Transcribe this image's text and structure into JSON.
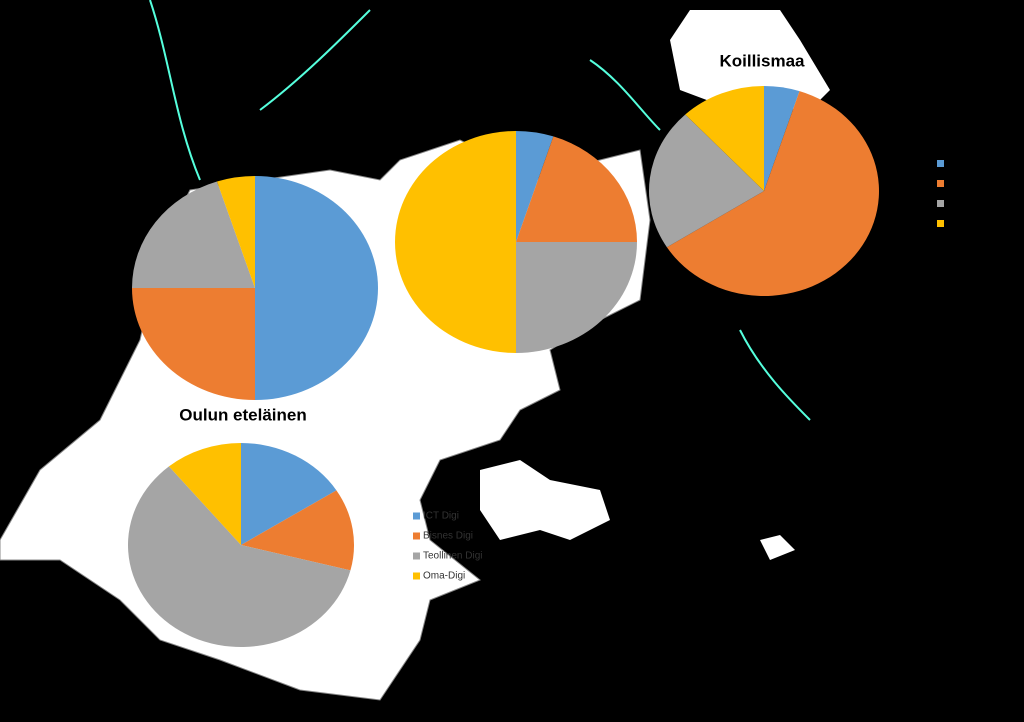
{
  "legend": {
    "labels": [
      "ICT Digi",
      "Bisnes Digi",
      "Teollinen Digi",
      "Oma-Digi"
    ],
    "colors": [
      "#5b9bd5",
      "#ed7d31",
      "#a5a5a5",
      "#ffc000"
    ]
  },
  "chart_data": [
    {
      "type": "pie",
      "values": [
        50,
        25,
        20,
        5
      ]
    },
    {
      "type": "pie",
      "values": [
        5,
        20,
        25,
        50
      ]
    },
    {
      "type": "pie",
      "title": "Koillismaa",
      "values": [
        5,
        61,
        22,
        12
      ]
    },
    {
      "type": "pie",
      "title": "Oulun eteläinen",
      "values": [
        16,
        13,
        60,
        11
      ]
    }
  ]
}
